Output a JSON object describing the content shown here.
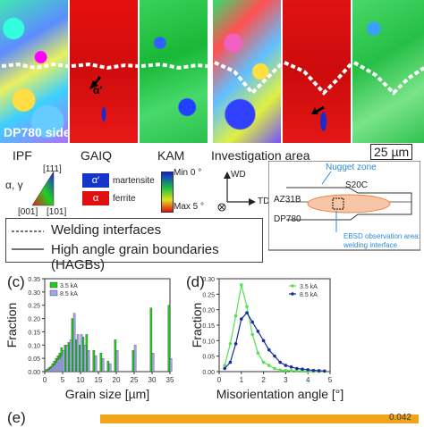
{
  "panel_a": {
    "labels": {
      "alpha_prime": "α′",
      "side": "DP780 side",
      "scale_bar": "25 µm"
    },
    "legend_headers": [
      "IPF",
      "GAIQ",
      "KAM",
      "Investigation area"
    ],
    "ipf": {
      "alpha_gamma": "α, γ",
      "corner_111": "[111]",
      "corner_001": "[001]",
      "corner_101": "[101]"
    },
    "gaiq": [
      {
        "symbol": "α′",
        "label": "martensite",
        "color": "#1535c8"
      },
      {
        "symbol": "α",
        "label": "ferrite",
        "color": "#e01010"
      }
    ],
    "kam": {
      "min": "Min 0 °",
      "max": "Max 5 °"
    },
    "investigation": {
      "axis_wd": "WD",
      "axis_td": "TD",
      "nugget_zone": "Nugget zone",
      "s20c": "S20C",
      "az31b": "AZ31B",
      "dp780": "DP780",
      "ebsd_line1": "EBSD observation area:",
      "ebsd_line2": "welding interface"
    },
    "line_legend": [
      {
        "style": "dashed",
        "label": "Welding interfaces"
      },
      {
        "style": "solid",
        "label": "High angle grain boundaries (HAGBs)"
      }
    ]
  },
  "panel_c_label": "(c)",
  "panel_d_label": "(d)",
  "panel_e_label": "(e)",
  "panel_e_value": "0.042",
  "colors": {
    "series_35": "#22c922",
    "series_85": "#9ea6e8",
    "line_35": "#55e055",
    "line_85": "#1a2aa0",
    "interface": "#ffffff"
  },
  "chart_data": [
    {
      "type": "bar",
      "xlabel": "Grain size [µm]",
      "ylabel": "Fraction",
      "ylim": [
        0,
        0.35
      ],
      "xlim": [
        0,
        35
      ],
      "yticks": [
        "0.00",
        "0.05",
        "0.10",
        "0.15",
        "0.20",
        "0.25",
        "0.30",
        "0.35"
      ],
      "xticks": [
        "0",
        "5",
        "10",
        "15",
        "20",
        "25",
        "30",
        "35"
      ],
      "legend_position": "top-left",
      "x": [
        0.5,
        1,
        1.5,
        2,
        2.5,
        3,
        3.5,
        4,
        4.5,
        5,
        6,
        7,
        8,
        9,
        10,
        11,
        12,
        14,
        16,
        18,
        20,
        25,
        30,
        35
      ],
      "series": [
        {
          "name": "3.5 kA",
          "values": [
            0.005,
            0.01,
            0.015,
            0.02,
            0.03,
            0.04,
            0.05,
            0.06,
            0.07,
            0.09,
            0.1,
            0.11,
            0.2,
            0.12,
            0.1,
            0.13,
            0.14,
            0.08,
            0.07,
            0.04,
            0.12,
            0.08,
            0.24,
            0.25
          ]
        },
        {
          "name": "8.5 kA",
          "values": [
            0.005,
            0.008,
            0.012,
            0.02,
            0.025,
            0.035,
            0.045,
            0.05,
            0.06,
            0.08,
            0.1,
            0.12,
            0.22,
            0.14,
            0.14,
            0.1,
            0.08,
            0.06,
            0.05,
            0.03,
            0.08,
            0.1,
            0.07,
            0.05
          ]
        }
      ]
    },
    {
      "type": "line",
      "xlabel": "Misorientation angle [°]",
      "ylabel": "Fraction",
      "xlim": [
        0,
        5
      ],
      "ylim": [
        0,
        0.3
      ],
      "xticks": [
        "0",
        "1",
        "2",
        "3",
        "4",
        "5"
      ],
      "yticks": [
        "0.00",
        "0.05",
        "0.10",
        "0.15",
        "0.20",
        "0.25",
        "0.30"
      ],
      "legend_position": "top-right",
      "x": [
        0.25,
        0.5,
        0.75,
        1.0,
        1.25,
        1.5,
        1.75,
        2.0,
        2.25,
        2.5,
        2.75,
        3.0,
        3.25,
        3.5,
        3.75,
        4.0,
        4.25,
        4.5,
        4.75
      ],
      "series": [
        {
          "name": "3.5 kA",
          "values": [
            0.02,
            0.09,
            0.18,
            0.28,
            0.21,
            0.12,
            0.06,
            0.03,
            0.02,
            0.01,
            0.005,
            0.004,
            0.003,
            0.002,
            0.002,
            0.001,
            0.001,
            0.001,
            0.001
          ]
        },
        {
          "name": "8.5 kA",
          "values": [
            0.01,
            0.03,
            0.09,
            0.17,
            0.19,
            0.16,
            0.13,
            0.1,
            0.07,
            0.05,
            0.03,
            0.02,
            0.015,
            0.01,
            0.008,
            0.006,
            0.004,
            0.003,
            0.002
          ]
        }
      ]
    }
  ]
}
